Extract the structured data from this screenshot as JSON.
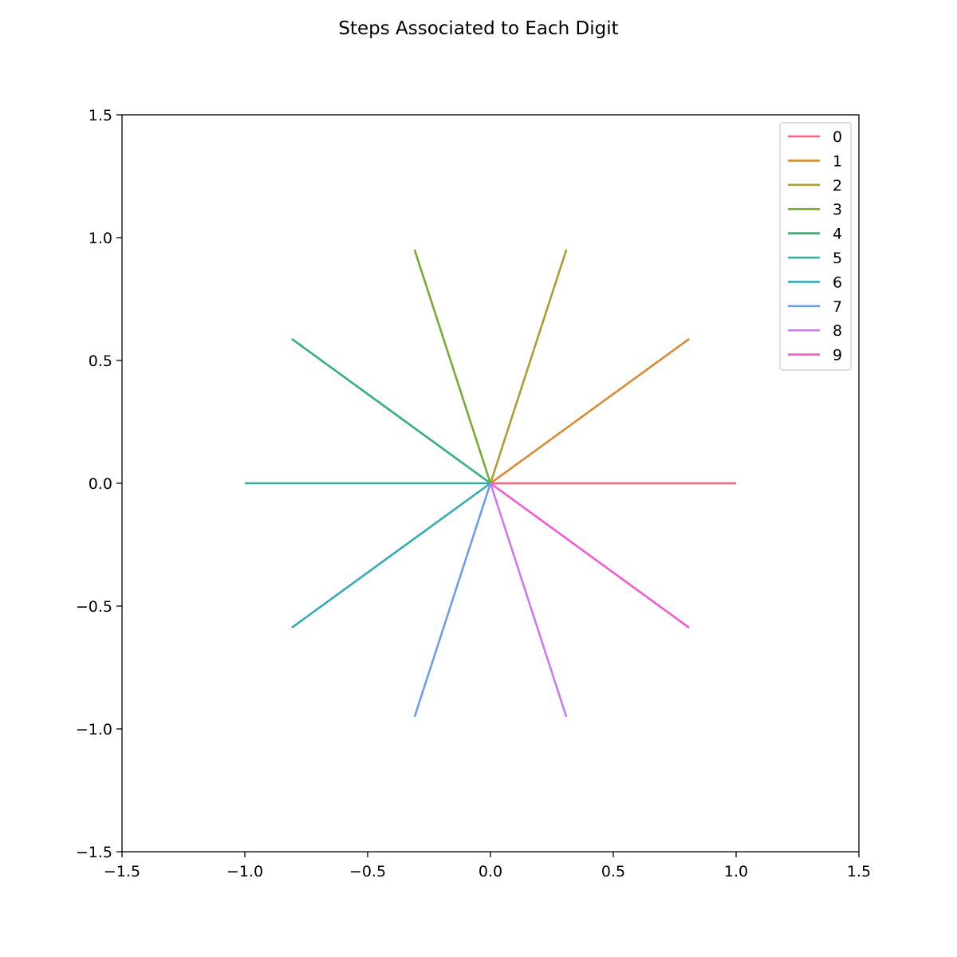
{
  "chart_data": {
    "type": "line",
    "title": "Steps Associated to Each Digit",
    "xlabel": "",
    "ylabel": "",
    "xlim": [
      -1.5,
      1.5
    ],
    "ylim": [
      -1.5,
      1.5
    ],
    "x_ticks": [
      -1.5,
      -1.0,
      -0.5,
      0.0,
      0.5,
      1.0,
      1.5
    ],
    "y_ticks": [
      -1.5,
      -1.0,
      -0.5,
      0.0,
      0.5,
      1.0,
      1.5
    ],
    "x_tick_labels": [
      "−1.5",
      "−1.0",
      "−0.5",
      "0.0",
      "0.5",
      "1.0",
      "1.5"
    ],
    "y_tick_labels": [
      "−1.5",
      "−1.0",
      "−0.5",
      "0.0",
      "0.5",
      "1.0",
      "1.5"
    ],
    "grid": false,
    "legend_position": "top-right",
    "series": [
      {
        "name": "0",
        "color": "#f3677f",
        "x": [
          0,
          1.0
        ],
        "y": [
          0,
          0.0
        ]
      },
      {
        "name": "1",
        "color": "#db8a36",
        "x": [
          0,
          0.809
        ],
        "y": [
          0,
          0.588
        ]
      },
      {
        "name": "2",
        "color": "#ae9d31",
        "x": [
          0,
          0.309
        ],
        "y": [
          0,
          0.951
        ]
      },
      {
        "name": "3",
        "color": "#77ab31",
        "x": [
          0,
          -0.309
        ],
        "y": [
          0,
          0.951
        ]
      },
      {
        "name": "4",
        "color": "#33b07a",
        "x": [
          0,
          -0.809
        ],
        "y": [
          0,
          0.588
        ]
      },
      {
        "name": "5",
        "color": "#35ae9e",
        "x": [
          0,
          -1.0
        ],
        "y": [
          0,
          0.0
        ]
      },
      {
        "name": "6",
        "color": "#37abb5",
        "x": [
          0,
          -0.809
        ],
        "y": [
          0,
          -0.588
        ]
      },
      {
        "name": "7",
        "color": "#6c9ef0",
        "x": [
          0,
          -0.309
        ],
        "y": [
          0,
          -0.951
        ]
      },
      {
        "name": "8",
        "color": "#cc7af2",
        "x": [
          0,
          0.309
        ],
        "y": [
          0,
          -0.951
        ]
      },
      {
        "name": "9",
        "color": "#f25cd2",
        "x": [
          0,
          0.809
        ],
        "y": [
          0,
          -0.588
        ]
      }
    ]
  }
}
